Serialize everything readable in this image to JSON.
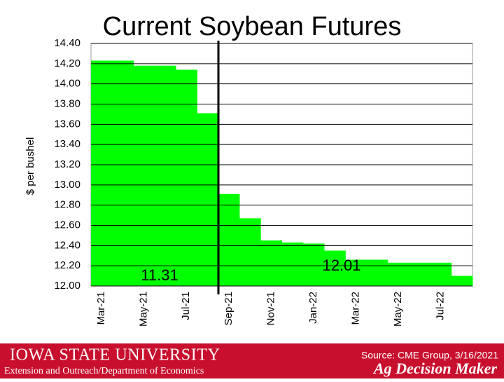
{
  "chart_data": {
    "type": "bar",
    "title": "Current Soybean Futures",
    "y_label": "$ per bushel",
    "categories": [
      "Mar-21",
      null,
      "May-21",
      null,
      "Jul-21",
      null,
      "Sep-21",
      null,
      "Nov-21",
      null,
      "Jan-22",
      null,
      "Mar-22",
      null,
      "May-22",
      null,
      "Jul-22",
      null
    ],
    "values": [
      14.23,
      14.23,
      14.18,
      14.18,
      14.14,
      13.71,
      12.91,
      12.67,
      12.45,
      12.43,
      12.42,
      12.35,
      12.26,
      12.26,
      12.23,
      12.23,
      12.23,
      12.1
    ],
    "color": "#00ff00",
    "ylim": [
      12.0,
      14.4
    ],
    "yticks": [
      {
        "value": 12.0,
        "label": "12.00"
      },
      {
        "value": 12.2,
        "label": "12.20"
      },
      {
        "value": 12.4,
        "label": "12.40"
      },
      {
        "value": 12.6,
        "label": "12.60"
      },
      {
        "value": 12.8,
        "label": "12.80"
      },
      {
        "value": 13.0,
        "label": "13.00"
      },
      {
        "value": 13.2,
        "label": "13.20"
      },
      {
        "value": 13.4,
        "label": "13.40"
      },
      {
        "value": 13.6,
        "label": "13.60"
      },
      {
        "value": 13.8,
        "label": "13.80"
      },
      {
        "value": 14.0,
        "label": "14.00"
      },
      {
        "value": 14.2,
        "label": "14.20"
      },
      {
        "value": 14.4,
        "label": "14.40"
      }
    ],
    "grid": true,
    "annotations": [
      "11.31",
      "12.01"
    ]
  },
  "footer": {
    "university": "Iowa State University",
    "department": "Extension and Outreach/Department of Economics",
    "source": "Source: CME Group, 3/16/2021",
    "brand": "Ag Decision Maker"
  }
}
